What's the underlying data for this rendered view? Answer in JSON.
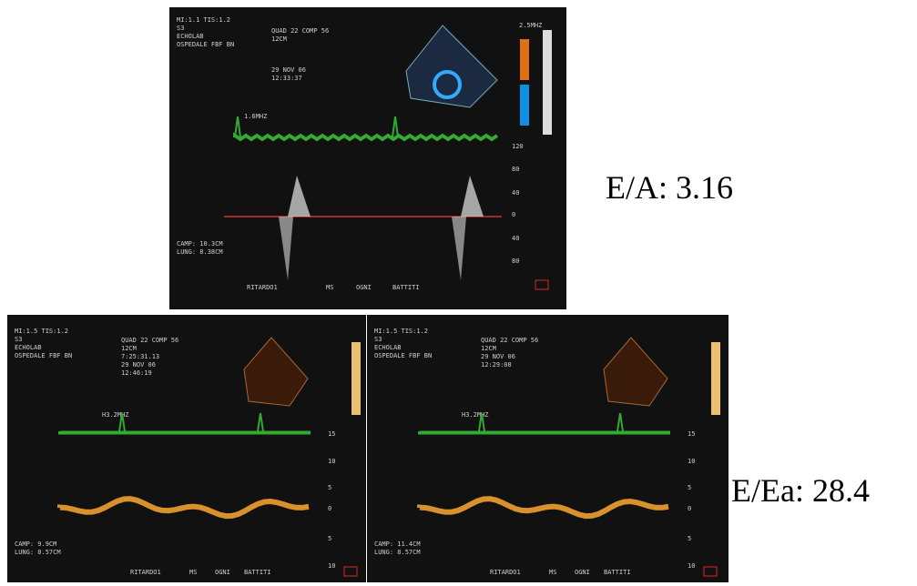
{
  "top_panel": {
    "header": [
      "MI:1.1 TIS:1.2",
      "S3",
      "ECHOLAB",
      "OSPEDALE FBF BN"
    ],
    "info": [
      "QUAD 22 COMP 56",
      "12CM",
      "29 NOV 06",
      "12:33:37"
    ],
    "frequency": "1.6MHZ",
    "probe_frequency": "2.5MHZ",
    "scale_labels": [
      "120",
      "80",
      "40",
      "0",
      "40",
      "80"
    ],
    "measures": [
      "CAMP: 10.3CM",
      "LUNG: 8.38CM"
    ],
    "footer": [
      "RITARDO1",
      "MS",
      "OGNI",
      "BATTITI"
    ]
  },
  "bottom_left_panel": {
    "header": [
      "MI:1.5 TIS:1.2",
      "S3",
      "ECHOLAB",
      "OSPEDALE FBF BN"
    ],
    "info": [
      "QUAD 22 COMP 56",
      "12CM",
      "7:25:31.13",
      "29 NOV 06",
      "12:46:19"
    ],
    "frequency": "H3.2MHZ",
    "scale_labels": [
      "15",
      "10",
      "5",
      "0",
      "5",
      "10"
    ],
    "measures": [
      "CAMP: 9.9CM",
      "LUNG: 8.57CM"
    ],
    "footer": [
      "RITARDO1",
      "MS",
      "OGNI",
      "BATTITI"
    ]
  },
  "bottom_right_panel": {
    "header": [
      "MI:1.5 TIS:1.2",
      "S3",
      "ECHOLAB",
      "OSPEDALE FBF BN"
    ],
    "info": [
      "QUAD 22 COMP 56",
      "12CM",
      "29 NOV 06",
      "12:29:08"
    ],
    "frequency": "H3.2MHZ",
    "scale_labels": [
      "15",
      "10",
      "5",
      "0",
      "5",
      "10"
    ],
    "measures": [
      "CAMP: 11.4CM",
      "LUNG: 8.57CM"
    ],
    "footer": [
      "RITARDO1",
      "MS",
      "OGNI",
      "BATTITI"
    ]
  },
  "ratios": {
    "e_a": "E/A: 3.16",
    "e_ea": "E/Ea: 28.4"
  }
}
